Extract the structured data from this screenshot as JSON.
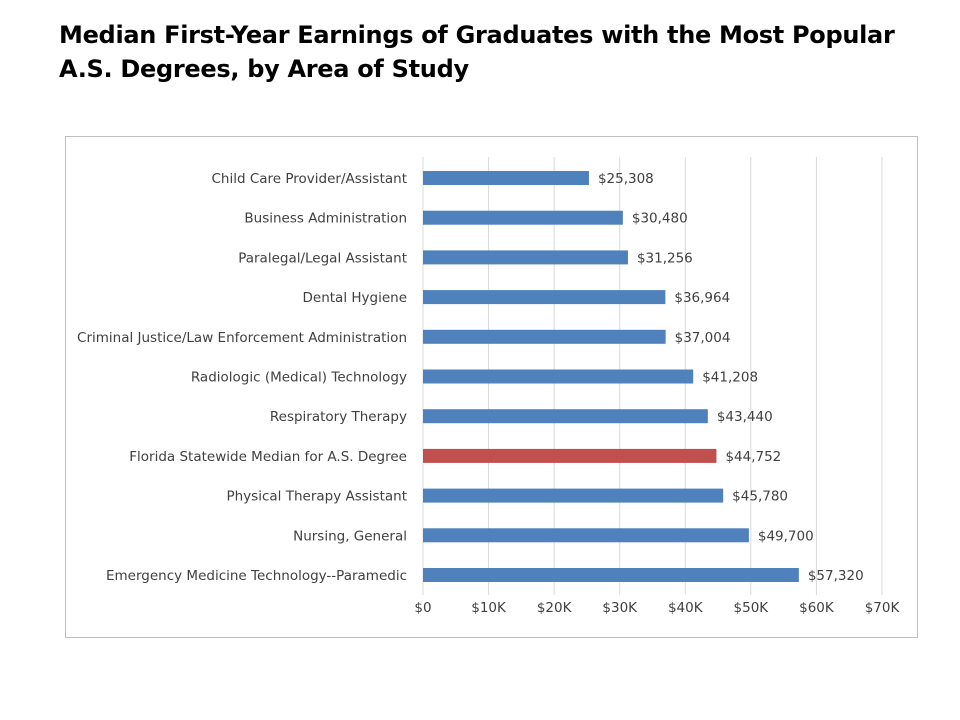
{
  "slide": {
    "title": "Median First-Year Earnings of Graduates with the Most Popular A.S. Degrees, by Area of Study"
  },
  "chart_data": {
    "type": "bar",
    "orientation": "horizontal",
    "title": "",
    "xlabel": "",
    "ylabel": "",
    "xlim": [
      0,
      70000
    ],
    "grid": true,
    "legend": "none",
    "categories": [
      "Child Care Provider/Assistant",
      "Business Administration",
      "Paralegal/Legal Assistant",
      "Dental Hygiene",
      "Criminal Justice/Law Enforcement Administration",
      "Radiologic (Medical) Technology",
      "Respiratory Therapy",
      "Florida Statewide Median for A.S. Degree",
      "Physical Therapy Assistant",
      "Nursing, General",
      "Emergency Medicine Technology--Paramedic"
    ],
    "values": [
      25308,
      30480,
      31256,
      36964,
      37004,
      41208,
      43440,
      44752,
      45780,
      49700,
      57320
    ],
    "data_labels": [
      "$25,308",
      "$30,480",
      "$31,256",
      "$36,964",
      "$37,004",
      "$41,208",
      "$43,440",
      "$44,752",
      "$45,780",
      "$49,700",
      "$57,320"
    ],
    "tick_values": [
      0,
      10000,
      20000,
      30000,
      40000,
      50000,
      60000,
      70000
    ],
    "tick_labels": [
      "$0",
      "$10K",
      "$20K",
      "$30K",
      "$40K",
      "$50K",
      "$60K",
      "$70K"
    ],
    "highlight_index": 7,
    "colors": {
      "bar": "#4f81bd",
      "highlight": "#c0504d",
      "grid": "#d9d9d9"
    }
  }
}
